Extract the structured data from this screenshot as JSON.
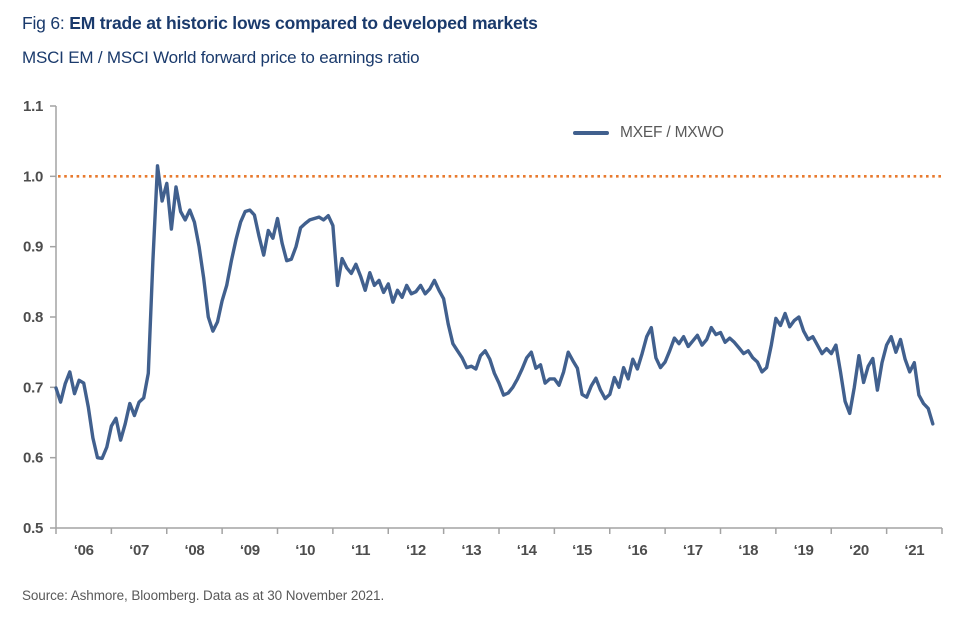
{
  "header": {
    "figure_label": "Fig 6: ",
    "title": "EM trade at historic lows compared to developed markets",
    "subtitle": "MSCI EM / MSCI World forward price to earnings ratio"
  },
  "footer": {
    "source": "Source: Ashmore, Bloomberg. Data as at 30 November 2021."
  },
  "colors": {
    "navy": "#1a3a6c",
    "line": "#41608e",
    "reference": "#e87a2e",
    "axis": "#a3a3a3",
    "ticklabel": "#4d4d4d",
    "gray": "#595959"
  },
  "chart_data": {
    "type": "line",
    "title": "Fig 6: EM trade at historic lows compared to developed markets",
    "subtitle": "MSCI EM / MSCI World forward price to earnings ratio",
    "legend": {
      "label": "MXEF / MXWO",
      "position": "top-center"
    },
    "ylim": [
      0.5,
      1.1
    ],
    "y_ticks": [
      1.1,
      1.0,
      0.9,
      0.8,
      0.7,
      0.6,
      0.5
    ],
    "x_tick_labels": [
      "‘06",
      "‘07",
      "‘08",
      "‘09",
      "‘10",
      "‘11",
      "‘12",
      "‘13",
      "‘14",
      "‘15",
      "‘16",
      "‘17",
      "‘18",
      "‘19",
      "‘20",
      "‘21"
    ],
    "grid": false,
    "reference_line": {
      "value": 1.0,
      "style": "dotted",
      "color": "#e87a2e"
    },
    "series": [
      {
        "name": "MXEF / MXWO",
        "color": "#41608e",
        "start": "2006-01",
        "end": "2021-11",
        "frequency": "monthly",
        "values": [
          0.699,
          0.679,
          0.705,
          0.722,
          0.691,
          0.71,
          0.706,
          0.672,
          0.628,
          0.6,
          0.599,
          0.615,
          0.645,
          0.656,
          0.625,
          0.648,
          0.677,
          0.66,
          0.679,
          0.685,
          0.72,
          0.88,
          1.015,
          0.965,
          0.99,
          0.925,
          0.985,
          0.95,
          0.938,
          0.952,
          0.935,
          0.9,
          0.855,
          0.8,
          0.78,
          0.793,
          0.823,
          0.845,
          0.88,
          0.91,
          0.935,
          0.95,
          0.952,
          0.945,
          0.915,
          0.888,
          0.923,
          0.912,
          0.94,
          0.905,
          0.88,
          0.882,
          0.9,
          0.927,
          0.933,
          0.938,
          0.94,
          0.942,
          0.938,
          0.944,
          0.93,
          0.845,
          0.883,
          0.87,
          0.862,
          0.875,
          0.858,
          0.838,
          0.863,
          0.845,
          0.852,
          0.835,
          0.847,
          0.821,
          0.838,
          0.828,
          0.845,
          0.833,
          0.836,
          0.845,
          0.833,
          0.84,
          0.852,
          0.838,
          0.826,
          0.79,
          0.762,
          0.752,
          0.742,
          0.728,
          0.73,
          0.726,
          0.745,
          0.752,
          0.74,
          0.72,
          0.706,
          0.689,
          0.692,
          0.7,
          0.712,
          0.726,
          0.742,
          0.75,
          0.727,
          0.732,
          0.706,
          0.712,
          0.712,
          0.703,
          0.722,
          0.75,
          0.738,
          0.727,
          0.69,
          0.686,
          0.702,
          0.713,
          0.696,
          0.684,
          0.69,
          0.714,
          0.7,
          0.728,
          0.712,
          0.74,
          0.726,
          0.748,
          0.772,
          0.785,
          0.742,
          0.728,
          0.736,
          0.752,
          0.77,
          0.762,
          0.772,
          0.758,
          0.766,
          0.774,
          0.76,
          0.768,
          0.785,
          0.775,
          0.778,
          0.764,
          0.77,
          0.764,
          0.756,
          0.748,
          0.752,
          0.742,
          0.736,
          0.722,
          0.728,
          0.76,
          0.798,
          0.788,
          0.805,
          0.786,
          0.795,
          0.8,
          0.78,
          0.768,
          0.772,
          0.76,
          0.748,
          0.755,
          0.748,
          0.76,
          0.722,
          0.68,
          0.663,
          0.7,
          0.745,
          0.707,
          0.73,
          0.741,
          0.696,
          0.735,
          0.76,
          0.772,
          0.75,
          0.768,
          0.74,
          0.722,
          0.735,
          0.689,
          0.677,
          0.67,
          0.648
        ]
      }
    ]
  }
}
